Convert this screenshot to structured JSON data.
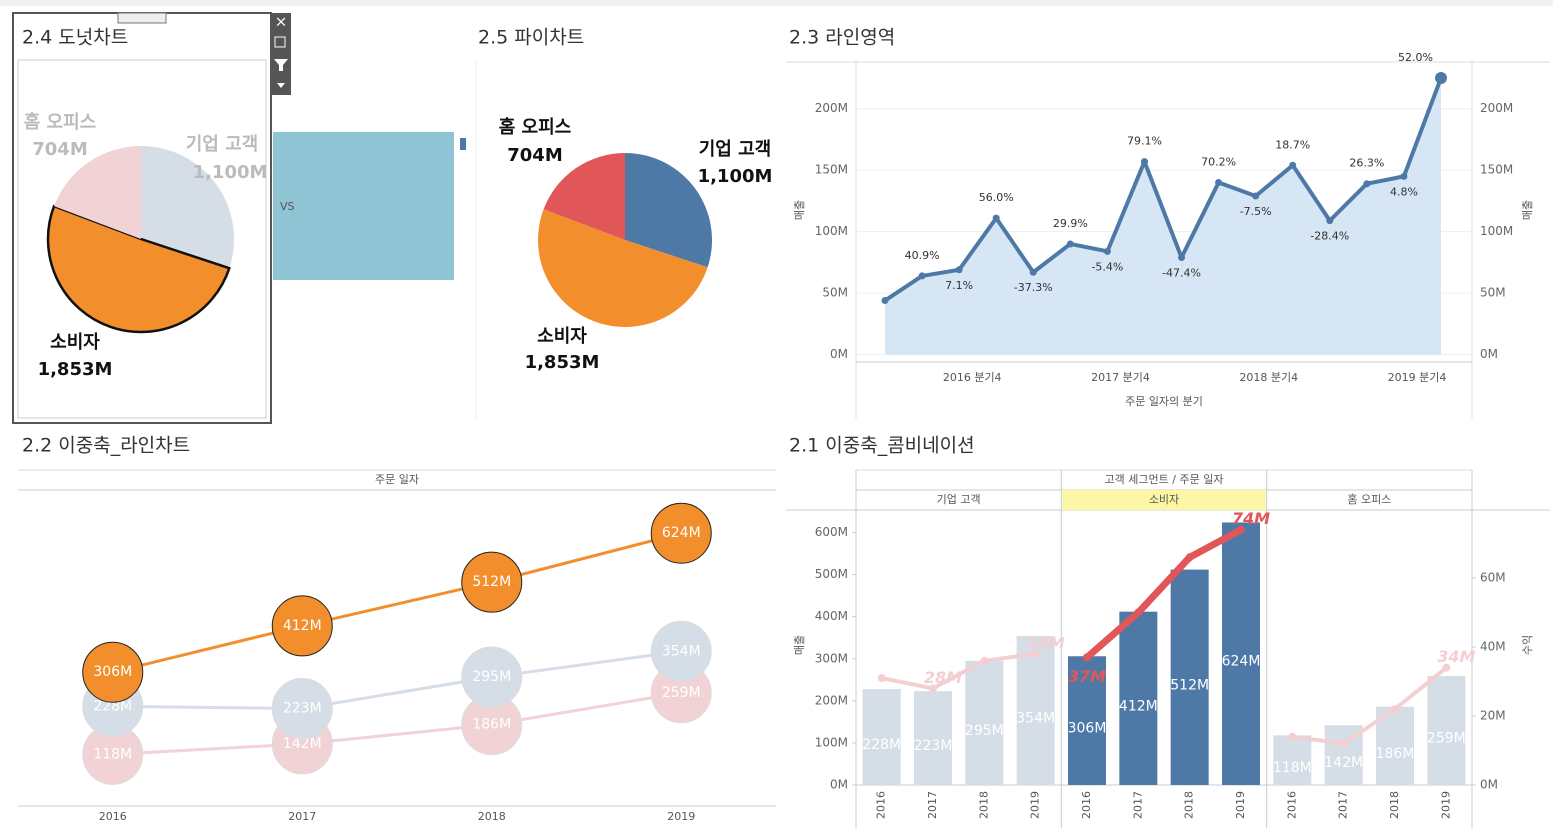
{
  "chart_data": [
    {
      "type": "pie",
      "title": "2.4 도넛차트",
      "categories": [
        "기업 고객",
        "소비자",
        "홈 오피스"
      ],
      "values": [
        1100,
        1853,
        704
      ],
      "value_labels": [
        "1,100M",
        "1,853M",
        "704M"
      ],
      "colors": [
        "#d5dde6",
        "#f28e2b",
        "#f1d3d6"
      ]
    },
    {
      "type": "pie",
      "title": "2.5 파이차트",
      "categories": [
        "기업 고객",
        "소비자",
        "홈 오피스"
      ],
      "values": [
        1100,
        1853,
        704
      ],
      "value_labels": [
        "1,100M",
        "1,853M",
        "704M"
      ],
      "colors": [
        "#4e79a7",
        "#f28e2b",
        "#e15759"
      ],
      "annotation": "VS"
    },
    {
      "type": "area",
      "title": "2.3 라인영역",
      "categories": [
        null,
        null,
        null,
        "2016 분기4",
        null,
        null,
        null,
        "2017 분기4",
        null,
        null,
        null,
        "2018 분기4",
        null,
        null,
        null,
        "2019 분기4"
      ],
      "values": [
        44,
        64,
        69,
        111,
        67,
        90,
        84,
        157,
        79,
        140,
        129,
        154,
        109,
        139,
        145,
        225
      ],
      "growth_labels": [
        null,
        "40.9%",
        "7.1%",
        "56.0%",
        "-37.3%",
        "29.9%",
        "-5.4%",
        "79.1%",
        "-47.4%",
        "70.2%",
        "-7.5%",
        "18.7%",
        "-28.4%",
        "26.3%",
        "4.8%",
        "52.0%"
      ],
      "color": "#4e79a7",
      "area_color": "#d6e6f4",
      "xlabel": "주문 일자의 분기",
      "ylabel": "매출",
      "y2label": "매출",
      "ylim": [
        -6,
        238
      ],
      "yticks": [
        {
          "value": 0,
          "label": "0M"
        },
        {
          "value": 50,
          "label": "50M"
        },
        {
          "value": 100,
          "label": "100M"
        },
        {
          "value": 150,
          "label": "150M"
        },
        {
          "value": 200,
          "label": "200M"
        }
      ],
      "grid": true
    },
    {
      "type": "line",
      "title": "2.2 이중축_라인차트",
      "header": "주문 일자",
      "categories": [
        "2016",
        "2017",
        "2018",
        "2019"
      ],
      "ylim": [
        0,
        700
      ],
      "series": [
        {
          "name": "소비자",
          "color": "#f28e2b",
          "values": [
            306,
            412,
            512,
            624
          ],
          "value_labels": [
            "306M",
            "412M",
            "512M",
            "624M"
          ]
        },
        {
          "name": "기업 고객",
          "color": "#d5dde6",
          "values": [
            228,
            223,
            295,
            354
          ],
          "value_labels": [
            "228M",
            "223M",
            "295M",
            "354M"
          ]
        },
        {
          "name": "홈 오피스",
          "color": "#f1d3d6",
          "values": [
            118,
            142,
            186,
            259
          ],
          "value_labels": [
            "118M",
            "142M",
            "186M",
            "259M"
          ]
        }
      ]
    },
    {
      "type": "combo",
      "title": "2.1 이중축_콤비네이션",
      "header": "고객 세그먼트 / 주문 일자",
      "categories": [
        "2016",
        "2017",
        "2018",
        "2019"
      ],
      "ylabel": "매출",
      "y2label": "수익",
      "ylim": [
        0,
        656
      ],
      "yticks": [
        {
          "value": 0,
          "label": "0M"
        },
        {
          "value": 100,
          "label": "100M"
        },
        {
          "value": 200,
          "label": "200M"
        },
        {
          "value": 300,
          "label": "300M"
        },
        {
          "value": 400,
          "label": "400M"
        },
        {
          "value": 500,
          "label": "500M"
        },
        {
          "value": 600,
          "label": "600M"
        }
      ],
      "y2lim": [
        0,
        80
      ],
      "y2ticks": [
        {
          "value": 0,
          "label": "0M"
        },
        {
          "value": 20,
          "label": "20M"
        },
        {
          "value": 40,
          "label": "40M"
        },
        {
          "value": 60,
          "label": "60M"
        }
      ],
      "series": [
        {
          "name": "기업 고객",
          "color": "#d5dde6",
          "line_color": "#f3cfd2",
          "highlight": false,
          "values": [
            228,
            223,
            295,
            354
          ],
          "value_labels": [
            "228M",
            "223M",
            "295M",
            "354M"
          ],
          "profit": [
            31,
            28,
            36,
            38
          ],
          "profit_labels": [
            null,
            "28M",
            null,
            "38M"
          ],
          "axis": "y2"
        },
        {
          "name": "소비자",
          "color": "#4e79a7",
          "line_color": "#e15759",
          "highlight": true,
          "values": [
            306,
            412,
            512,
            624
          ],
          "value_labels": [
            "306M",
            "412M",
            "512M",
            "624M"
          ],
          "profit": [
            37,
            50,
            66,
            74
          ],
          "profit_labels": [
            "37M",
            null,
            null,
            "74M"
          ],
          "axis": "y2"
        },
        {
          "name": "홈 오피스",
          "color": "#d5dde6",
          "line_color": "#f3cfd2",
          "highlight": false,
          "values": [
            118,
            142,
            186,
            259
          ],
          "value_labels": [
            "118M",
            "142M",
            "186M",
            "259M"
          ],
          "profit": [
            14,
            12,
            22,
            34
          ],
          "profit_labels": [
            null,
            null,
            null,
            "34M"
          ],
          "axis": "y2"
        }
      ]
    }
  ]
}
